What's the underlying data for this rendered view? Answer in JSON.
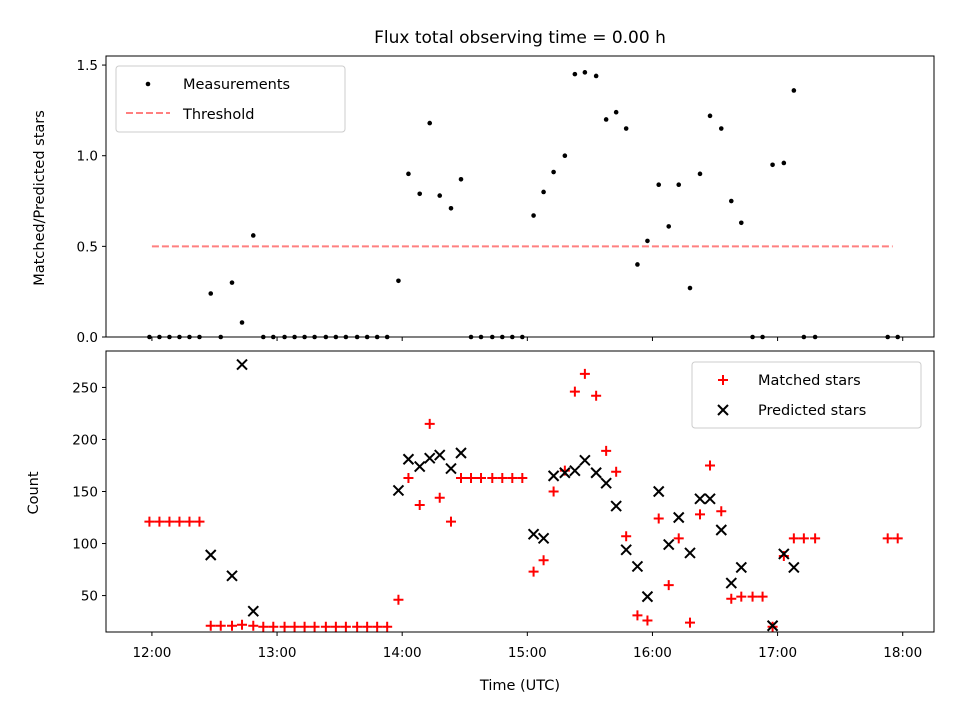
{
  "chart_data": [
    {
      "type": "scatter",
      "title": "Flux total observing time = 0.00 h",
      "xlabel": "",
      "ylabel": "Matched/Predicted stars",
      "xlim_hours": [
        11.633,
        18.25
      ],
      "ylim": [
        0,
        1.55
      ],
      "yticks": [
        0.0,
        0.5,
        1.0,
        1.5
      ],
      "ytick_labels": [
        "0.0",
        "0.5",
        "1.0",
        "1.5"
      ],
      "legend_position": "upper left",
      "series": [
        {
          "name": "Measurements",
          "marker": "dot",
          "color": "#000000",
          "points": [
            [
              11.98,
              0
            ],
            [
              12.06,
              0
            ],
            [
              12.14,
              0
            ],
            [
              12.22,
              0
            ],
            [
              12.3,
              0
            ],
            [
              12.38,
              0
            ],
            [
              12.47,
              0.24
            ],
            [
              12.55,
              0
            ],
            [
              12.64,
              0.3
            ],
            [
              12.72,
              0.08
            ],
            [
              12.81,
              0.56
            ],
            [
              12.89,
              0
            ],
            [
              12.97,
              0
            ],
            [
              13.06,
              0
            ],
            [
              13.14,
              0
            ],
            [
              13.22,
              0
            ],
            [
              13.3,
              0
            ],
            [
              13.39,
              0
            ],
            [
              13.47,
              0
            ],
            [
              13.55,
              0
            ],
            [
              13.64,
              0
            ],
            [
              13.72,
              0
            ],
            [
              13.8,
              0
            ],
            [
              13.88,
              0
            ],
            [
              13.97,
              0.31
            ],
            [
              14.05,
              0.9
            ],
            [
              14.14,
              0.79
            ],
            [
              14.22,
              1.18
            ],
            [
              14.3,
              0.78
            ],
            [
              14.39,
              0.71
            ],
            [
              14.47,
              0.87
            ],
            [
              14.55,
              0
            ],
            [
              14.63,
              0
            ],
            [
              14.72,
              0
            ],
            [
              14.8,
              0
            ],
            [
              14.88,
              0
            ],
            [
              14.96,
              0
            ],
            [
              15.05,
              0.67
            ],
            [
              15.13,
              0.8
            ],
            [
              15.21,
              0.91
            ],
            [
              15.3,
              1.0
            ],
            [
              15.38,
              1.45
            ],
            [
              15.46,
              1.46
            ],
            [
              15.55,
              1.44
            ],
            [
              15.63,
              1.2
            ],
            [
              15.71,
              1.24
            ],
            [
              15.79,
              1.15
            ],
            [
              15.88,
              0.4
            ],
            [
              15.96,
              0.53
            ],
            [
              16.05,
              0.84
            ],
            [
              16.13,
              0.61
            ],
            [
              16.21,
              0.84
            ],
            [
              16.3,
              0.27
            ],
            [
              16.38,
              0.9
            ],
            [
              16.46,
              1.22
            ],
            [
              16.55,
              1.15
            ],
            [
              16.63,
              0.75
            ],
            [
              16.71,
              0.63
            ],
            [
              16.8,
              0
            ],
            [
              16.88,
              0
            ],
            [
              16.96,
              0.95
            ],
            [
              17.05,
              0.96
            ],
            [
              17.13,
              1.36
            ],
            [
              17.21,
              0
            ],
            [
              17.3,
              0
            ],
            [
              17.88,
              0
            ],
            [
              17.96,
              0
            ]
          ]
        },
        {
          "name": "Threshold",
          "style": "dashed",
          "color": "#ff7f7f",
          "x": [
            12.0,
            17.92
          ],
          "y": [
            0.5,
            0.5
          ]
        }
      ]
    },
    {
      "type": "scatter",
      "title": "",
      "xlabel": "Time (UTC)",
      "ylabel": "Count",
      "xlim_hours": [
        11.633,
        18.25
      ],
      "ylim": [
        15,
        285
      ],
      "yticks": [
        50,
        100,
        150,
        200,
        250
      ],
      "ytick_labels": [
        "50",
        "100",
        "150",
        "200",
        "250"
      ],
      "xticks_hours": [
        12,
        13,
        14,
        15,
        16,
        17,
        18
      ],
      "xtick_labels": [
        "12:00",
        "13:00",
        "14:00",
        "15:00",
        "16:00",
        "17:00",
        "18:00"
      ],
      "legend_position": "upper right",
      "series": [
        {
          "name": "Matched stars",
          "marker": "plus",
          "color": "#ff0000",
          "points": [
            [
              11.98,
              121
            ],
            [
              12.06,
              121
            ],
            [
              12.14,
              121
            ],
            [
              12.22,
              121
            ],
            [
              12.3,
              121
            ],
            [
              12.38,
              121
            ],
            [
              12.47,
              21
            ],
            [
              12.55,
              21
            ],
            [
              12.64,
              21
            ],
            [
              12.72,
              22
            ],
            [
              12.81,
              21
            ],
            [
              12.89,
              20
            ],
            [
              12.97,
              20
            ],
            [
              13.06,
              20
            ],
            [
              13.14,
              20
            ],
            [
              13.22,
              20
            ],
            [
              13.3,
              20
            ],
            [
              13.39,
              20
            ],
            [
              13.47,
              20
            ],
            [
              13.55,
              20
            ],
            [
              13.64,
              20
            ],
            [
              13.72,
              20
            ],
            [
              13.8,
              20
            ],
            [
              13.88,
              20
            ],
            [
              13.97,
              46
            ],
            [
              14.05,
              163
            ],
            [
              14.14,
              137
            ],
            [
              14.22,
              215
            ],
            [
              14.3,
              144
            ],
            [
              14.39,
              121
            ],
            [
              14.47,
              163
            ],
            [
              14.55,
              163
            ],
            [
              14.63,
              163
            ],
            [
              14.72,
              163
            ],
            [
              14.8,
              163
            ],
            [
              14.88,
              163
            ],
            [
              14.96,
              163
            ],
            [
              15.05,
              73
            ],
            [
              15.13,
              84
            ],
            [
              15.21,
              150
            ],
            [
              15.3,
              170
            ],
            [
              15.38,
              246
            ],
            [
              15.46,
              263
            ],
            [
              15.55,
              242
            ],
            [
              15.63,
              189
            ],
            [
              15.71,
              169
            ],
            [
              15.79,
              107
            ],
            [
              15.88,
              31
            ],
            [
              15.96,
              26
            ],
            [
              16.05,
              124
            ],
            [
              16.13,
              60
            ],
            [
              16.21,
              105
            ],
            [
              16.3,
              24
            ],
            [
              16.38,
              128
            ],
            [
              16.46,
              175
            ],
            [
              16.55,
              131
            ],
            [
              16.63,
              47
            ],
            [
              16.71,
              49
            ],
            [
              16.8,
              49
            ],
            [
              16.88,
              49
            ],
            [
              16.96,
              20
            ],
            [
              17.05,
              88
            ],
            [
              17.13,
              105
            ],
            [
              17.21,
              105
            ],
            [
              17.3,
              105
            ],
            [
              17.88,
              105
            ],
            [
              17.96,
              105
            ]
          ]
        },
        {
          "name": "Predicted stars",
          "marker": "x",
          "color": "#000000",
          "points": [
            [
              12.47,
              89
            ],
            [
              12.64,
              69
            ],
            [
              12.72,
              272
            ],
            [
              12.81,
              35
            ],
            [
              13.97,
              151
            ],
            [
              14.05,
              181
            ],
            [
              14.14,
              174
            ],
            [
              14.22,
              182
            ],
            [
              14.3,
              185
            ],
            [
              14.39,
              172
            ],
            [
              14.47,
              187
            ],
            [
              15.05,
              109
            ],
            [
              15.13,
              105
            ],
            [
              15.21,
              165
            ],
            [
              15.3,
              168
            ],
            [
              15.38,
              170
            ],
            [
              15.46,
              180
            ],
            [
              15.55,
              168
            ],
            [
              15.63,
              158
            ],
            [
              15.71,
              136
            ],
            [
              15.79,
              94
            ],
            [
              15.88,
              78
            ],
            [
              15.96,
              49
            ],
            [
              16.05,
              150
            ],
            [
              16.13,
              99
            ],
            [
              16.21,
              125
            ],
            [
              16.3,
              91
            ],
            [
              16.38,
              143
            ],
            [
              16.46,
              143
            ],
            [
              16.55,
              113
            ],
            [
              16.63,
              62
            ],
            [
              16.71,
              77
            ],
            [
              16.96,
              21
            ],
            [
              17.05,
              90
            ],
            [
              17.13,
              77
            ]
          ]
        }
      ]
    }
  ]
}
